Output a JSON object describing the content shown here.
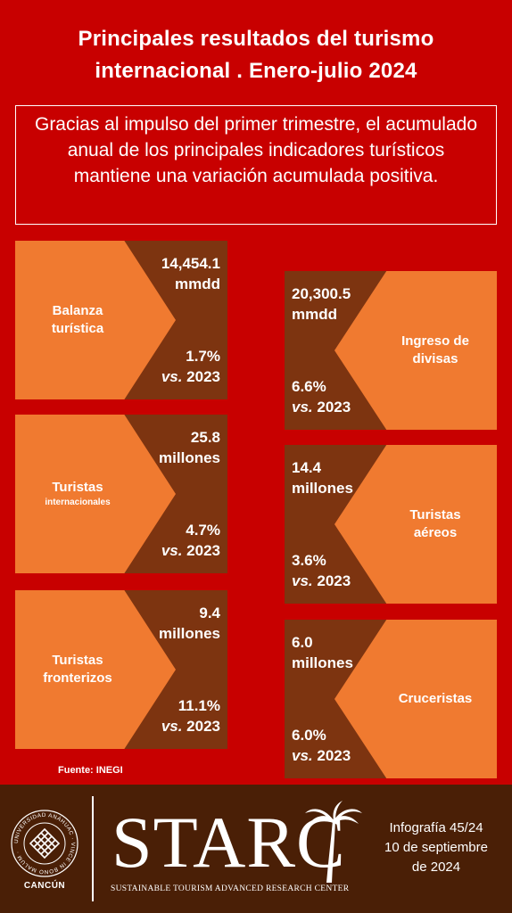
{
  "header": {
    "title_line1": "Principales resultados del turismo",
    "title_line2": "internacional  . Enero-julio 2024"
  },
  "intro": "Gracias al impulso del primer trimestre, el acumulado anual de los principales indicadores turísticos mantiene una variación acumulada positiva.",
  "cards": [
    {
      "label": "Balanza",
      "label2": "turística",
      "sub": "",
      "value1": "14,454.1",
      "value2": "mmdd",
      "pct": "1.7%",
      "vs_prefix": "vs.",
      "vs_year": " 2023"
    },
    {
      "label": "Ingreso de",
      "label2": "divisas",
      "sub": "",
      "value1": "20,300.5",
      "value2": "mmdd",
      "pct": "6.6%",
      "vs_prefix": "vs.",
      "vs_year": " 2023"
    },
    {
      "label": "Turistas",
      "label2": "",
      "sub": "internacionales",
      "value1": "25.8",
      "value2": "millones",
      "pct": "4.7%",
      "vs_prefix": "vs.",
      "vs_year": " 2023"
    },
    {
      "label": "Turistas",
      "label2": "aéreos",
      "sub": "",
      "value1": "14.4",
      "value2": "millones",
      "pct": "3.6%",
      "vs_prefix": "vs.",
      "vs_year": " 2023"
    },
    {
      "label": "Turistas",
      "label2": "fronterizos",
      "sub": "",
      "value1": "9.4",
      "value2": "millones",
      "pct": "11.1%",
      "vs_prefix": "vs.",
      "vs_year": " 2023"
    },
    {
      "label": "Cruceristas",
      "label2": "",
      "sub": "",
      "value1": "6.0",
      "value2": "millones",
      "pct": "6.0%",
      "vs_prefix": "vs.",
      "vs_year": " 2023"
    }
  ],
  "source": "Fuente: INEGI",
  "footer": {
    "university_ring": "UNIVERSIDAD ANÁHUAC · VINCE IN BONO MALUM",
    "campus": "CANCÚN",
    "brand": "STARC",
    "brand_sub": "SUSTAINABLE TOURISM ADVANCED RESEARCH CENTER",
    "info_line1": "Infografía 45/24",
    "info_line2": "10  de septiembre",
    "info_line3": "de 2024"
  },
  "colors": {
    "background": "#c80000",
    "card": "#7d3410",
    "arrow": "#f07a30",
    "footer": "#4a1f06"
  }
}
